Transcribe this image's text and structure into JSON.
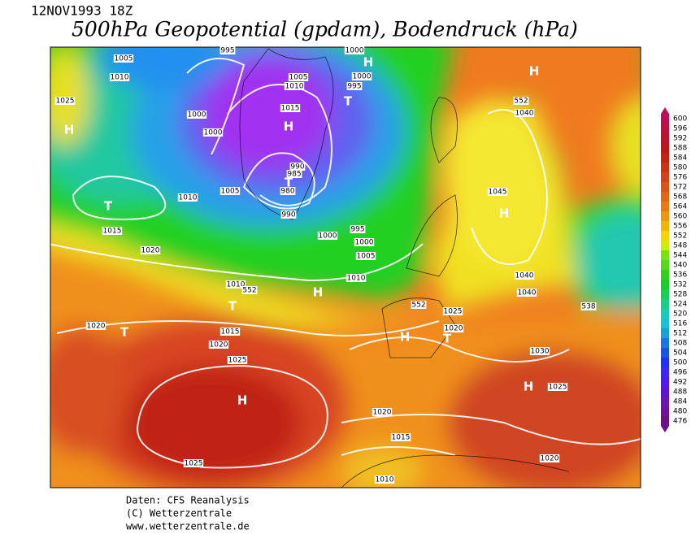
{
  "header": {
    "date": "12NOV1993 18Z",
    "title": "500hPa Geopotential (gpdam), Bodendruck (hPa)"
  },
  "legend": {
    "labels": [
      600,
      596,
      592,
      588,
      584,
      580,
      576,
      572,
      568,
      564,
      560,
      556,
      552,
      548,
      544,
      540,
      536,
      532,
      528,
      524,
      520,
      516,
      512,
      508,
      504,
      500,
      496,
      492,
      488,
      484,
      480,
      476
    ]
  },
  "map": {
    "labels": [
      "1005",
      "1010",
      "1025",
      "H",
      "1000",
      "1000",
      "995",
      "1005",
      "1010",
      "1015",
      "H",
      "990",
      "985",
      "980",
      "T",
      "1005",
      "1010",
      "T",
      "1015",
      "1020",
      "990",
      "995",
      "1000",
      "1000",
      "1005",
      "1010",
      "1000",
      "H",
      "1000",
      "995",
      "T",
      "H",
      "552",
      "1040",
      "1045",
      "H",
      "1040",
      "1040",
      "538",
      "1010",
      "552",
      "H",
      "T",
      "552",
      "1025",
      "1020",
      "T",
      "1015",
      "1020",
      "H",
      "1020",
      "T",
      "1030",
      "1025",
      "H",
      "H",
      "1025",
      "1020",
      "1015",
      "1020",
      "1025",
      "1010"
    ]
  },
  "footer": {
    "lines": [
      "Daten: CFS Reanalysis",
      "(C) Wetterzentrale",
      "www.wetterzentrale.de"
    ]
  }
}
